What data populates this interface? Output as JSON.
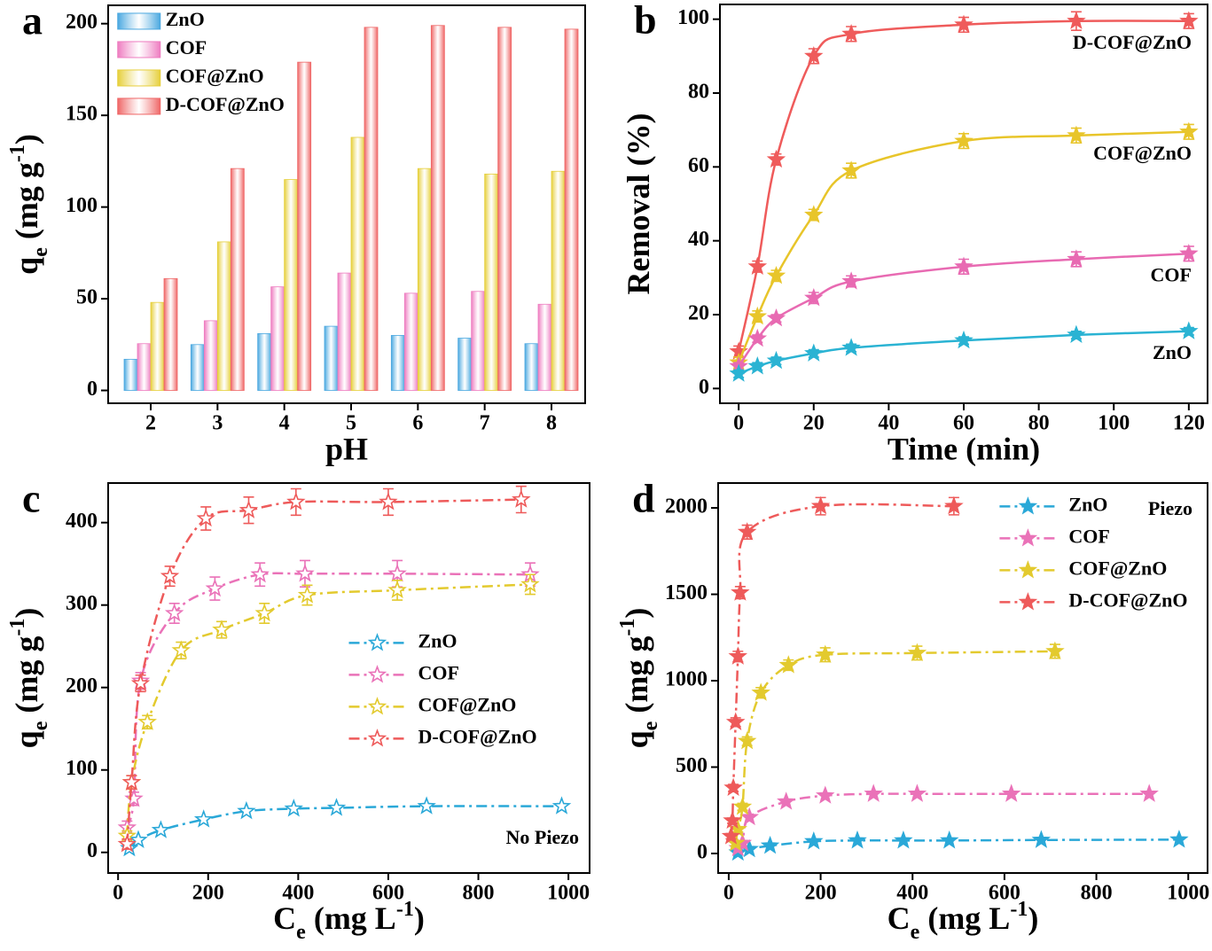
{
  "chart_data": [
    {
      "type": "bar",
      "panel": "a",
      "xlabel": "pH",
      "ylabel": [
        "q",
        "e",
        " (mg g",
        "-1",
        ")"
      ],
      "categories": [
        "2",
        "3",
        "4",
        "5",
        "6",
        "7",
        "8"
      ],
      "series": [
        {
          "name": "ZnO",
          "color": "#4aa8e0",
          "values": [
            17,
            25,
            31,
            35,
            30,
            28.5,
            25.5
          ]
        },
        {
          "name": "COF",
          "color": "#ee7cc0",
          "values": [
            25.5,
            38,
            56.5,
            64,
            53,
            54,
            47
          ]
        },
        {
          "name": "COF@ZnO",
          "color": "#e6cf3a",
          "values": [
            48,
            81,
            115,
            138,
            121,
            118,
            119.5
          ]
        },
        {
          "name": "D-COF@ZnO",
          "color": "#ef6666",
          "values": [
            61,
            121,
            179,
            198,
            199,
            198,
            197
          ]
        }
      ],
      "ylim": [
        -7,
        210
      ],
      "yticks": [
        0,
        50,
        100,
        150,
        200
      ],
      "legend": "upper left"
    },
    {
      "type": "line",
      "panel": "b",
      "xlabel": "Time (min)",
      "ylabel": [
        "Removal (%)"
      ],
      "marker": "star-filled",
      "linestyle": "solid",
      "label_series_at_end": true,
      "x": [
        0,
        5,
        10,
        20,
        30,
        60,
        90,
        120
      ],
      "series": [
        {
          "name": "D-COF@ZnO",
          "color": "#ef5b5b",
          "values": [
            10,
            33,
            62,
            90,
            96,
            98.5,
            99.5,
            99.5
          ],
          "errors": [
            1.5,
            1.5,
            1.5,
            2,
            2,
            2,
            2.5,
            2
          ]
        },
        {
          "name": "COF@ZnO",
          "color": "#e8c52a",
          "values": [
            7,
            19.5,
            30.5,
            47,
            59,
            67,
            68.5,
            69.5
          ],
          "errors": [
            1.5,
            1.5,
            1.5,
            1.5,
            2,
            2,
            2,
            2
          ]
        },
        {
          "name": "COF",
          "color": "#e86ab2",
          "values": [
            6,
            13.5,
            19,
            24.5,
            29,
            33,
            35,
            36.5
          ],
          "errors": [
            1,
            1,
            1,
            1.5,
            1.5,
            2,
            2,
            2
          ]
        },
        {
          "name": "ZnO",
          "color": "#2ab3d3",
          "values": [
            4,
            6,
            7.5,
            9.5,
            11,
            13,
            14.5,
            15.5
          ],
          "errors": [
            1,
            1,
            1,
            1,
            1,
            1,
            1,
            1
          ]
        }
      ],
      "xlim": [
        -5,
        125
      ],
      "xticks": [
        0,
        20,
        40,
        60,
        80,
        100,
        120
      ],
      "ylim": [
        -4,
        104
      ],
      "yticks": [
        0,
        20,
        40,
        60,
        80,
        100
      ]
    },
    {
      "type": "scatter-line",
      "panel": "c",
      "xlabel": [
        "C",
        "e",
        " (mg L",
        "-1",
        ")"
      ],
      "ylabel": [
        "q",
        "e",
        " (mg g",
        "-1",
        ")"
      ],
      "marker": "star-open",
      "linestyle": "dash-dot",
      "annotation": "No Piezo",
      "series": [
        {
          "name": "ZnO",
          "color": "#2aa8d8",
          "x": [
            25,
            45,
            95,
            190,
            285,
            390,
            485,
            685,
            985
          ],
          "values": [
            5,
            15,
            27,
            40,
            50,
            53,
            54,
            56,
            56
          ]
        },
        {
          "name": "COF",
          "color": "#ea72b8",
          "x": [
            20,
            35,
            50,
            125,
            215,
            315,
            415,
            620,
            915
          ],
          "values": [
            30,
            65,
            208,
            290,
            320,
            337,
            338,
            338,
            337
          ],
          "errors": [
            8,
            8,
            10,
            12,
            14,
            14,
            16,
            16,
            14
          ]
        },
        {
          "name": "COF@ZnO",
          "color": "#e3ca2e",
          "x": [
            20,
            30,
            65,
            140,
            230,
            325,
            420,
            620,
            915
          ],
          "values": [
            20,
            85,
            158,
            245,
            270,
            290,
            312,
            318,
            325
          ],
          "errors": [
            6,
            8,
            8,
            10,
            10,
            12,
            12,
            12,
            12
          ]
        },
        {
          "name": "D-COF@ZnO",
          "color": "#ee5a5a",
          "x": [
            20,
            30,
            50,
            115,
            195,
            290,
            395,
            600,
            895
          ],
          "values": [
            10,
            85,
            205,
            335,
            405,
            415,
            425,
            425,
            428
          ],
          "errors": [
            6,
            8,
            10,
            12,
            14,
            16,
            16,
            16,
            16
          ]
        }
      ],
      "xlim": [
        -22,
        1047
      ],
      "xticks": [
        0,
        200,
        400,
        600,
        800,
        1000
      ],
      "ylim": [
        -25,
        448
      ],
      "yticks": [
        0,
        100,
        200,
        300,
        400
      ],
      "legend": "center right"
    },
    {
      "type": "scatter-line",
      "panel": "d",
      "xlabel": [
        "C",
        "e",
        " (mg L",
        "-1",
        ")"
      ],
      "ylabel": [
        "q",
        "e",
        " (mg g",
        "-1",
        ")"
      ],
      "marker": "star-filled",
      "linestyle": "dash-dot",
      "annotation": "Piezo",
      "series": [
        {
          "name": "ZnO",
          "color": "#2aa8d8",
          "x": [
            20,
            45,
            90,
            185,
            280,
            380,
            480,
            680,
            980
          ],
          "values": [
            5,
            25,
            45,
            70,
            75,
            75,
            75,
            78,
            80
          ]
        },
        {
          "name": "COF",
          "color": "#ea72b8",
          "x": [
            20,
            30,
            45,
            125,
            210,
            315,
            410,
            615,
            915
          ],
          "values": [
            30,
            60,
            210,
            300,
            335,
            345,
            345,
            345,
            345
          ]
        },
        {
          "name": "COF@ZnO",
          "color": "#e3ca2e",
          "x": [
            15,
            20,
            30,
            40,
            70,
            130,
            210,
            410,
            710
          ],
          "values": [
            60,
            140,
            270,
            650,
            930,
            1090,
            1150,
            1160,
            1170
          ],
          "errors": [
            15,
            15,
            20,
            25,
            30,
            30,
            40,
            40,
            40
          ]
        },
        {
          "name": "D-COF@ZnO",
          "color": "#ee5a5a",
          "x": [
            5,
            8,
            10,
            15,
            20,
            25,
            40,
            200,
            490
          ],
          "values": [
            100,
            190,
            380,
            760,
            1140,
            1510,
            1860,
            2010,
            2010
          ],
          "errors": [
            15,
            15,
            20,
            25,
            30,
            35,
            40,
            50,
            50
          ]
        }
      ],
      "xlim": [
        -23,
        1042
      ],
      "xticks": [
        0,
        200,
        400,
        600,
        800,
        1000
      ],
      "ylim": [
        -113,
        2144
      ],
      "yticks": [
        0,
        500,
        1000,
        1500,
        2000
      ],
      "legend": "upper right"
    }
  ]
}
